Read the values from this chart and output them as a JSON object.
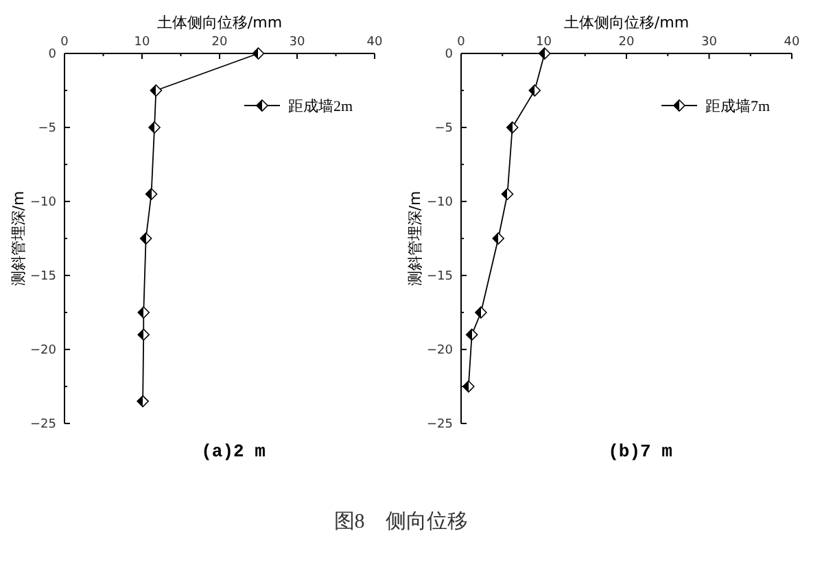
{
  "chart_data": [
    {
      "type": "line",
      "title": "(a)2 m",
      "xlabel": "土体侧向位移/mm",
      "ylabel": "测斜管埋深/m",
      "xlim": [
        0,
        40
      ],
      "xticks": [
        0,
        {
          "value": 5,
          "label": null
        },
        10,
        {
          "value": 15,
          "label": null
        },
        20,
        {
          "value": 25,
          "label": null
        },
        30,
        {
          "value": 35,
          "label": null
        },
        40
      ],
      "ylim": [
        -25,
        0
      ],
      "yticks": [
        0,
        {
          "value": -2.5,
          "label": null
        },
        -5,
        {
          "value": -7.5,
          "label": null
        },
        -10,
        {
          "value": -12.5,
          "label": null
        },
        -15,
        {
          "value": -17.5,
          "label": null
        },
        -20,
        {
          "value": -22.5,
          "label": null
        },
        -25
      ],
      "marker": "diamond",
      "legend": "top right",
      "series": [
        {
          "name": "距成墙2m",
          "color": "#000000",
          "x": [
            25.0,
            11.8,
            11.6,
            11.2,
            10.5,
            10.2,
            10.2,
            10.1
          ],
          "values": [
            0,
            -2.5,
            -5,
            -9.5,
            -12.5,
            -17.5,
            -19,
            -23.5
          ]
        }
      ],
      "annotations": [
        "图8　侧向位移"
      ]
    },
    {
      "type": "line",
      "title": "(b)7 m",
      "xlabel": "土体侧向位移/mm",
      "ylabel": "测斜管埋深/m",
      "xlim": [
        0,
        40
      ],
      "xticks": [
        0,
        {
          "value": 5,
          "label": null
        },
        10,
        {
          "value": 15,
          "label": null
        },
        20,
        {
          "value": 25,
          "label": null
        },
        30,
        {
          "value": 35,
          "label": null
        },
        40
      ],
      "yticks": [
        0,
        {
          "value": -2.5,
          "label": null
        },
        -5,
        {
          "value": -7.5,
          "label": null
        },
        -10,
        {
          "value": -12.5,
          "label": null
        },
        -15,
        {
          "value": -17.5,
          "label": null
        },
        -20,
        {
          "value": -22.5,
          "label": null
        },
        -25
      ],
      "ylim": [
        -25,
        0
      ],
      "marker": "diamond",
      "legend": "top right",
      "series": [
        {
          "name": "距成墙7m",
          "color": "#000000",
          "x": [
            10.1,
            8.9,
            6.2,
            5.6,
            4.5,
            2.4,
            1.3,
            0.9
          ],
          "values": [
            0,
            -2.5,
            -5,
            -9.5,
            -12.5,
            -17.5,
            -19,
            -22.5
          ]
        }
      ]
    }
  ]
}
